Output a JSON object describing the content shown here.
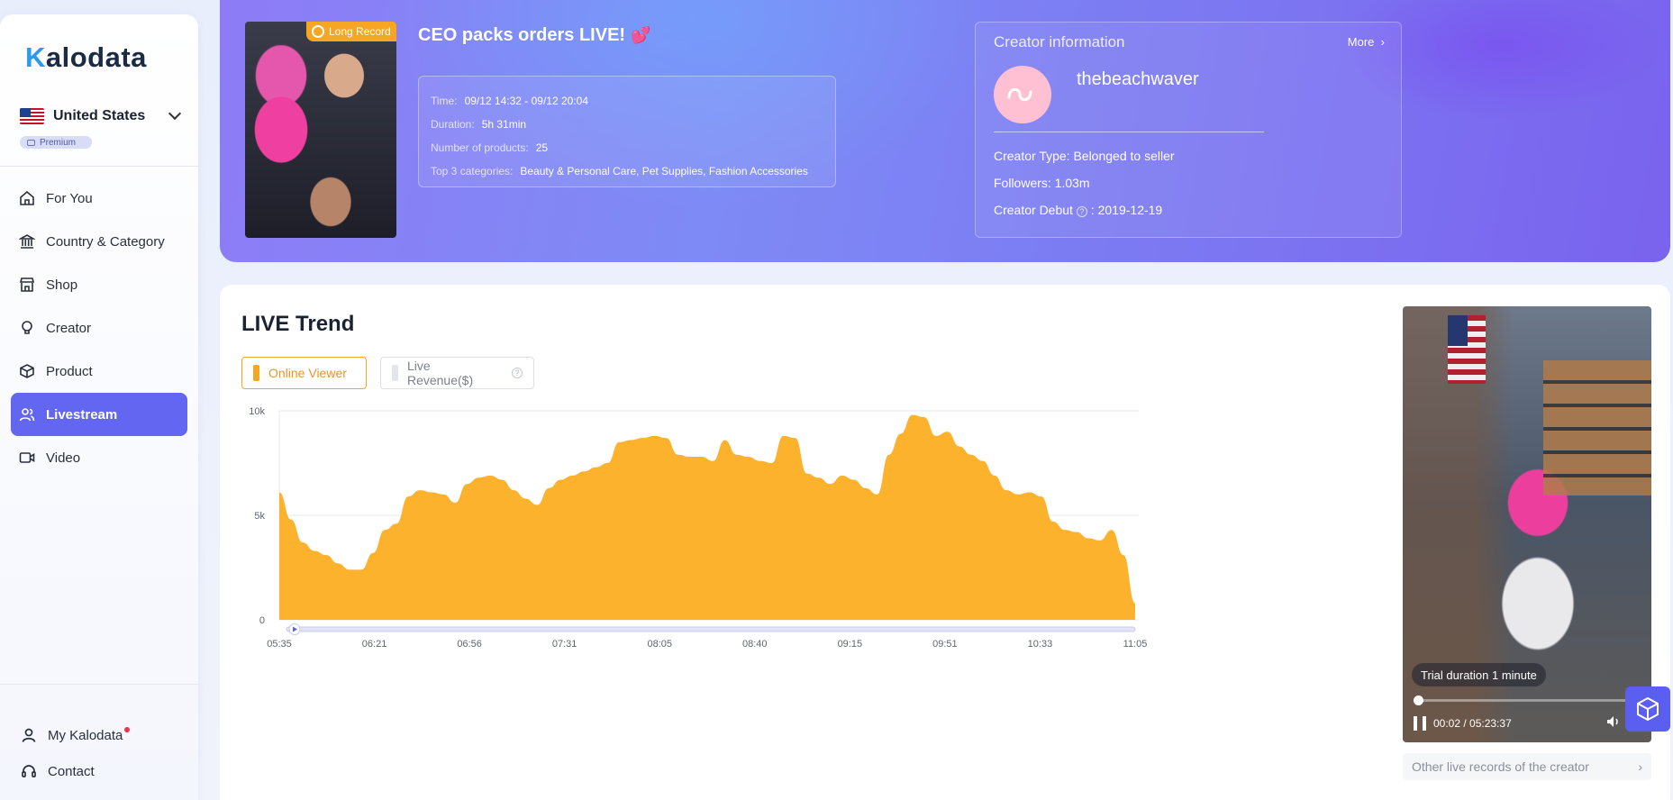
{
  "app": {
    "logo_k": "K",
    "logo_rest": "alodata"
  },
  "sidebar": {
    "country": "United States",
    "plan": "Premium",
    "items": [
      {
        "label": "For You",
        "icon": "home-icon"
      },
      {
        "label": "Country & Category",
        "icon": "bank-icon"
      },
      {
        "label": "Shop",
        "icon": "store-icon"
      },
      {
        "label": "Creator",
        "icon": "lightbulb-icon"
      },
      {
        "label": "Product",
        "icon": "box-icon"
      },
      {
        "label": "Livestream",
        "icon": "users-icon",
        "active": true
      },
      {
        "label": "Video",
        "icon": "video-icon"
      }
    ],
    "bottom": [
      {
        "label": "My Kalodata",
        "icon": "user-icon",
        "badge": true
      },
      {
        "label": "Contact",
        "icon": "headset-icon"
      }
    ]
  },
  "live": {
    "badge": "Long Record",
    "title": "CEO packs orders LIVE!",
    "title_emoji": "💕",
    "info": [
      {
        "key": "Time:",
        "value": "09/12 14:32 - 09/12 20:04"
      },
      {
        "key": "Duration:",
        "value": "5h 31min"
      },
      {
        "key": "Number of products:",
        "value": "25"
      },
      {
        "key": "Top 3 categories:",
        "value": "Beauty & Personal Care, Pet Supplies, Fashion Accessories"
      }
    ]
  },
  "creator": {
    "heading": "Creator information",
    "more": "More",
    "name": "thebeachwaver",
    "type": "Creator Type: Belonged to seller",
    "followers": "Followers: 1.03m",
    "debut_label": "Creator Debut",
    "debut_value": ": 2019-12-19"
  },
  "trend": {
    "title": "LIVE Trend",
    "metric_active": "Online Viewer",
    "metric_inactive": "Live Revenue($)"
  },
  "chart_data": {
    "type": "area",
    "title": "",
    "xlabel": "",
    "ylabel": "",
    "ylim": [
      0,
      10000
    ],
    "y_ticks": [
      "0",
      "5k",
      "10k"
    ],
    "y_tick_values": [
      0,
      5000,
      10000
    ],
    "x_ticks": [
      "05:35",
      "06:21",
      "06:56",
      "07:31",
      "08:05",
      "08:40",
      "09:15",
      "09:51",
      "10:33",
      "11:05"
    ],
    "color": "#fcb22c",
    "grid": true,
    "series": [
      {
        "name": "Online Viewer",
        "values": [
          6100,
          4800,
          3700,
          3300,
          3100,
          2700,
          2400,
          2400,
          3200,
          4300,
          4600,
          5900,
          6200,
          6100,
          6000,
          5600,
          6500,
          6800,
          6900,
          6700,
          6200,
          5800,
          5500,
          6300,
          6700,
          6900,
          7100,
          7300,
          7500,
          8500,
          8600,
          8700,
          8800,
          8700,
          7900,
          7800,
          7800,
          7600,
          8600,
          7900,
          7800,
          7600,
          7500,
          8800,
          8700,
          7000,
          6800,
          6500,
          6900,
          6700,
          6300,
          6000,
          7900,
          8900,
          9800,
          9700,
          8800,
          9000,
          8300,
          7900,
          7600,
          6900,
          6200,
          6000,
          6100,
          5900,
          4700,
          4300,
          4200,
          3900,
          3800,
          4300,
          3100,
          800
        ]
      }
    ]
  },
  "video": {
    "trial": "Trial duration 1 minute",
    "progress": 0.02,
    "time": "00:02 / 05:23:37",
    "other_records": "Other live records of the creator"
  }
}
